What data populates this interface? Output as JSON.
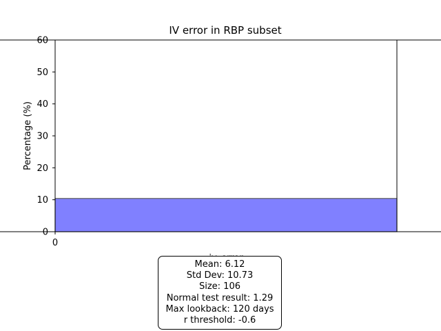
{
  "chart_data": {
    "type": "bar",
    "title": "IV error in RBP subset",
    "xlabel": "iv_error",
    "ylabel": "Percentage (%)",
    "ylim": [
      0,
      60
    ],
    "yticks": [
      "0",
      "10",
      "20",
      "30",
      "40",
      "50",
      "60"
    ],
    "xticks": [
      "0"
    ],
    "bars": [
      {
        "x_start": 0,
        "x_end": 1,
        "value": 10.4
      }
    ],
    "bar_color": "#8080ff",
    "bar_edge_color": "#595959",
    "stats": [
      "Mean: 6.12",
      "Std Dev: 10.73",
      "Size: 106",
      "Normal test result: 1.29",
      "Max lookback: 120 days",
      "r threshold: -0.6"
    ]
  }
}
